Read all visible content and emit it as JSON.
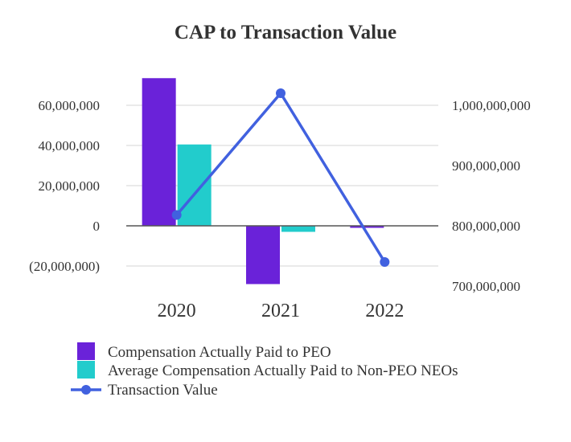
{
  "chart_data": {
    "type": "bar",
    "title": "CAP to Transaction Value",
    "categories": [
      "2020",
      "2021",
      "2022"
    ],
    "series": [
      {
        "name": "Compensation Actually Paid to PEO",
        "kind": "bar",
        "axis": "left",
        "color": "#6a22d9",
        "values": [
          73500000,
          -29000000,
          -1000000
        ]
      },
      {
        "name": "Average Compensation Actually Paid to Non-PEO NEOs",
        "kind": "bar",
        "axis": "left",
        "color": "#22cccc",
        "values": [
          40500000,
          -3000000,
          0
        ]
      },
      {
        "name": "Transaction Value",
        "kind": "line",
        "axis": "right",
        "color": "#4161df",
        "values": [
          818000000,
          1020000000,
          740000000
        ]
      }
    ],
    "y_left": {
      "ticks": [
        60000000,
        40000000,
        20000000,
        0,
        -20000000
      ],
      "tick_labels": [
        "60,000,000",
        "40,000,000",
        "20,000,000",
        "0",
        "(20,000,000)"
      ]
    },
    "y_right": {
      "ticks": [
        1000000000,
        900000000,
        800000000,
        700000000
      ],
      "tick_labels": [
        "1,000,000,000",
        "900,000,000",
        "800,000,000",
        "700,000,000"
      ]
    },
    "grid": true,
    "legend_position": "bottom-left"
  }
}
